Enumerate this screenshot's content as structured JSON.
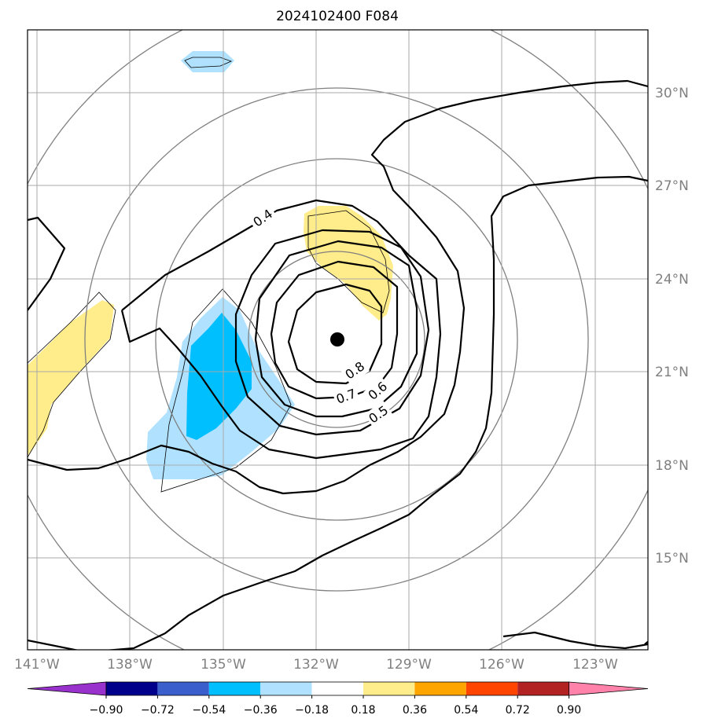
{
  "title": "2024102400 F084",
  "lon_ticks": [
    "141°W",
    "138°W",
    "135°W",
    "132°W",
    "129°W",
    "126°W",
    "123°W"
  ],
  "lat_ticks": [
    "30°N",
    "27°N",
    "24°N",
    "21°N",
    "18°N",
    "15°N"
  ],
  "contour_labels": [
    "0.4",
    "0.8",
    "0.7",
    "0.6",
    "0.5"
  ],
  "colorbar": {
    "labels": [
      "−0.90",
      "−0.72",
      "−0.54",
      "−0.36",
      "−0.18",
      "0.18",
      "0.36",
      "0.54",
      "0.72",
      "0.90"
    ],
    "colors": [
      "#9932cc",
      "#00008b",
      "#3a5fcd",
      "#00bfff",
      "#b0e2ff",
      "#ffffff",
      "#ffec8b",
      "#ffa500",
      "#ff4500",
      "#b22222",
      "#ff82ab"
    ]
  },
  "fill_colors": {
    "light_blue": "#b0e2ff",
    "blue": "#00bfff",
    "yellow": "#ffec8b"
  },
  "center_marker": "storm-center-dot"
}
